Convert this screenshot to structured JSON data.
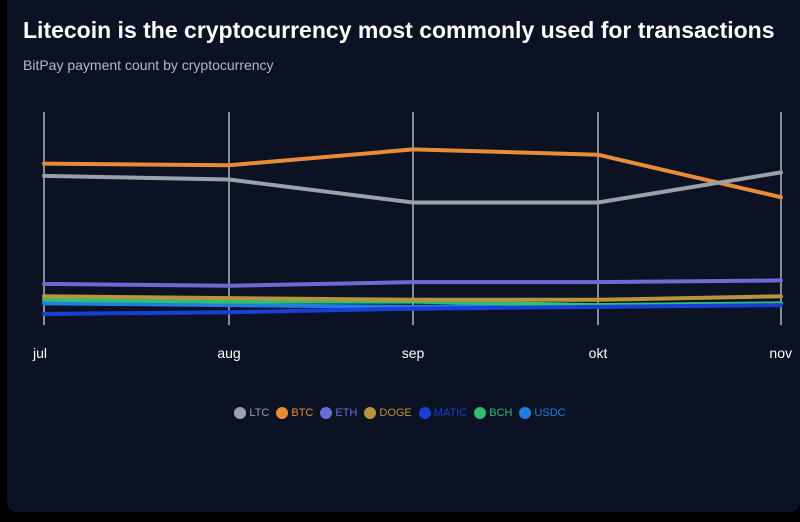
{
  "header": {
    "title": "Litecoin is the cryptocurrency most commonly used for transactions",
    "subtitle": "BitPay payment count by cryptocurrency"
  },
  "chart_data": {
    "type": "line",
    "title": "Litecoin is the cryptocurrency most commonly used for transactions",
    "subtitle": "BitPay payment count by cryptocurrency",
    "xlabel": "",
    "ylabel": "",
    "categories": [
      "jul",
      "aug",
      "sep",
      "okt",
      "nov"
    ],
    "ylim": [
      0,
      100
    ],
    "grid": "vertical",
    "legend_position": "bottom",
    "series": [
      {
        "name": "LTC",
        "color": "#9ca0a8",
        "values": [
          78,
          76,
          63,
          63,
          80
        ]
      },
      {
        "name": "BTC",
        "color": "#e98c37",
        "values": [
          85,
          84,
          93,
          90,
          66
        ]
      },
      {
        "name": "ETH",
        "color": "#6b6bd6",
        "values": [
          17,
          16,
          18,
          18,
          19
        ]
      },
      {
        "name": "DOGE",
        "color": "#b8943c",
        "values": [
          10,
          9,
          8,
          8,
          10
        ]
      },
      {
        "name": "MATIC",
        "color": "#1a3fd9",
        "values": [
          0,
          1,
          3,
          4,
          5
        ]
      },
      {
        "name": "BCH",
        "color": "#2fbf71",
        "values": [
          8,
          7,
          7,
          5,
          6
        ]
      },
      {
        "name": "USDC",
        "color": "#1f7ee0",
        "values": [
          6,
          5,
          4,
          5,
          6
        ]
      }
    ]
  }
}
